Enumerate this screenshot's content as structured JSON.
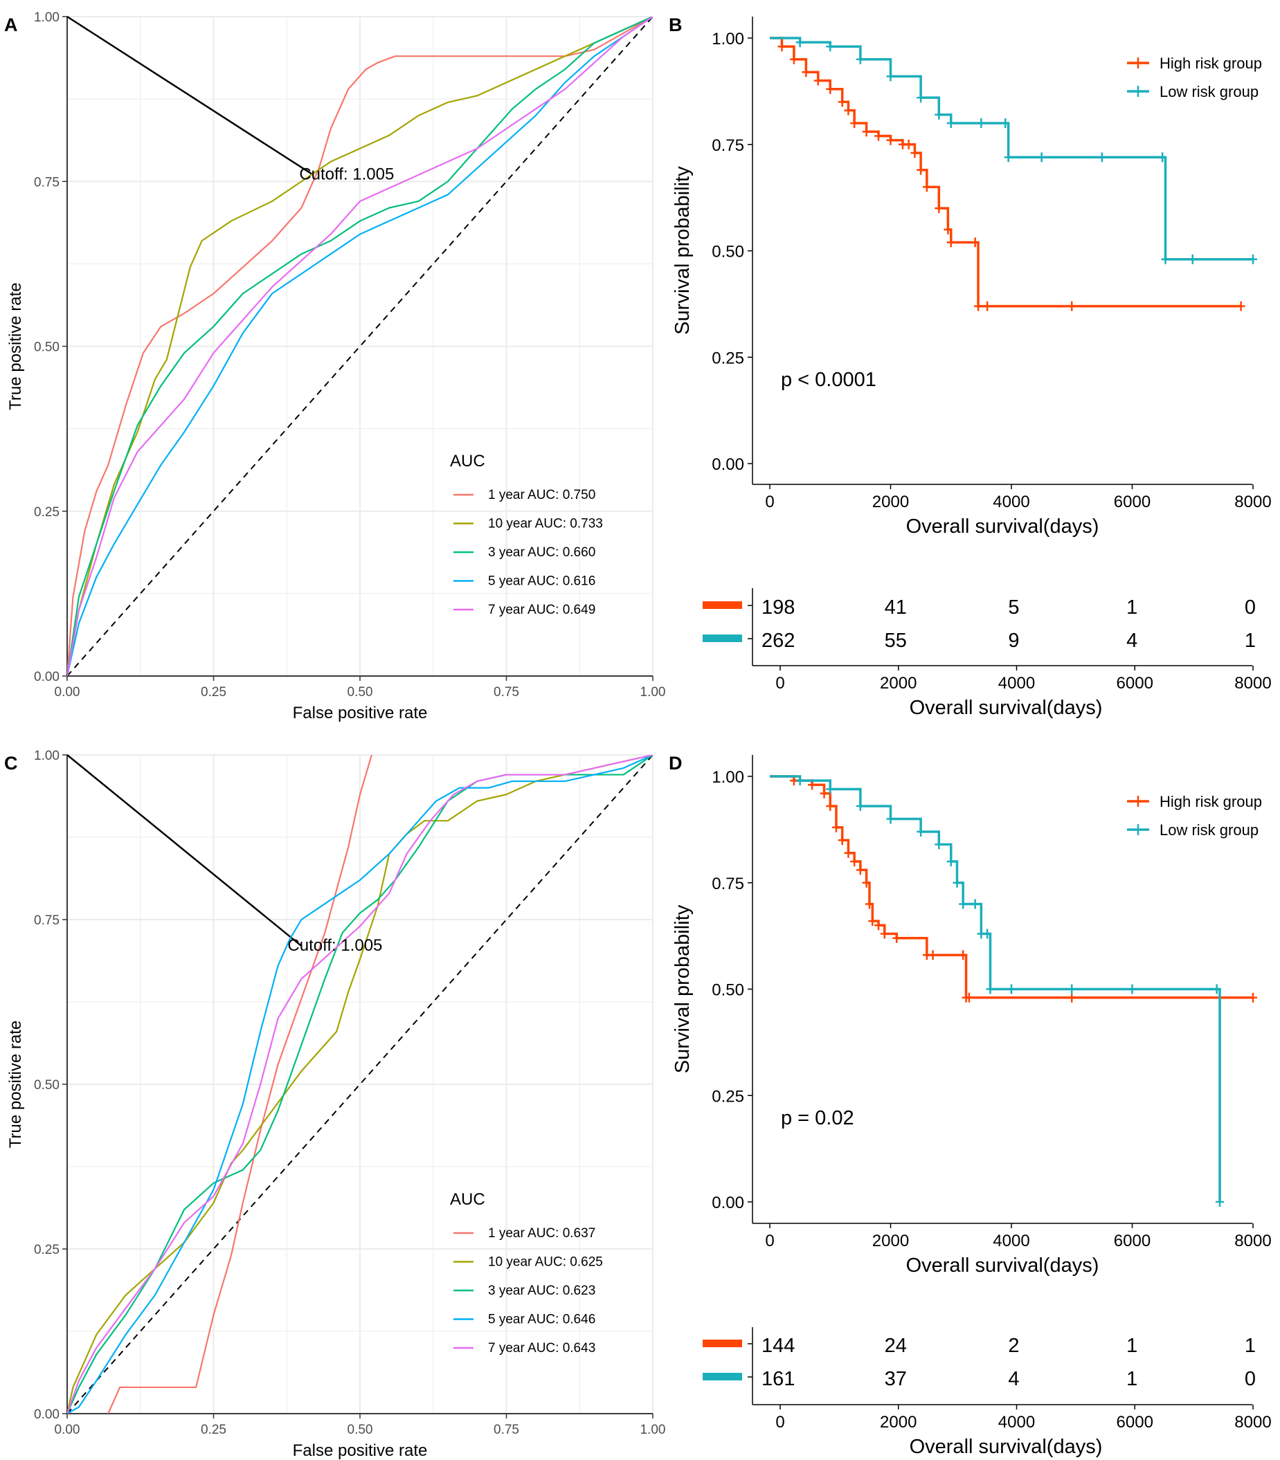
{
  "figure": "ROC and Kaplan-Meier survival analysis",
  "colors": {
    "y1": "#F8766D",
    "y10": "#A3A500",
    "y3": "#00BF7D",
    "y5": "#00B0F6",
    "y7": "#E76BF3",
    "high": "#FF4500",
    "low": "#1AAFBB",
    "grid": "#EBEBEB",
    "axis": "#000000"
  },
  "chart_data": [
    {
      "panel": "A",
      "type": "line",
      "xlabel": "False positive rate",
      "ylabel": "True positive rate",
      "xlim": [
        0,
        1
      ],
      "ylim": [
        0,
        1
      ],
      "xticks": [
        "0.00",
        "0.25",
        "0.50",
        "0.75",
        "1.00"
      ],
      "yticks": [
        "0.00",
        "0.25",
        "0.50",
        "0.75",
        "1.00"
      ],
      "grid": true,
      "legend_title": "AUC",
      "cutoff_label": "Cutoff: 1.005",
      "cutoff_point": [
        0.42,
        0.76
      ],
      "series": [
        {
          "name": "1 year AUC: 0.750",
          "color_key": "y1",
          "x": [
            0,
            0.01,
            0.03,
            0.05,
            0.07,
            0.1,
            0.13,
            0.16,
            0.2,
            0.25,
            0.3,
            0.35,
            0.4,
            0.43,
            0.45,
            0.48,
            0.51,
            0.53,
            0.56,
            0.6,
            0.7,
            0.8,
            0.85,
            0.9,
            1.0
          ],
          "y": [
            0,
            0.12,
            0.22,
            0.28,
            0.32,
            0.41,
            0.49,
            0.53,
            0.55,
            0.58,
            0.62,
            0.66,
            0.71,
            0.77,
            0.83,
            0.89,
            0.92,
            0.93,
            0.94,
            0.94,
            0.94,
            0.94,
            0.94,
            0.95,
            1.0
          ]
        },
        {
          "name": "10 year AUC: 0.733",
          "color_key": "y10",
          "x": [
            0,
            0.02,
            0.05,
            0.08,
            0.12,
            0.15,
            0.17,
            0.19,
            0.21,
            0.23,
            0.28,
            0.35,
            0.4,
            0.45,
            0.5,
            0.55,
            0.6,
            0.65,
            0.7,
            0.75,
            0.8,
            0.85,
            0.9,
            0.95,
            1.0
          ],
          "y": [
            0,
            0.1,
            0.2,
            0.29,
            0.37,
            0.45,
            0.48,
            0.55,
            0.62,
            0.66,
            0.69,
            0.72,
            0.75,
            0.78,
            0.8,
            0.82,
            0.85,
            0.87,
            0.88,
            0.9,
            0.92,
            0.94,
            0.96,
            0.98,
            1.0
          ]
        },
        {
          "name": "3 year AUC: 0.660",
          "color_key": "y3",
          "x": [
            0,
            0.02,
            0.05,
            0.08,
            0.12,
            0.16,
            0.2,
            0.25,
            0.3,
            0.35,
            0.4,
            0.45,
            0.5,
            0.55,
            0.6,
            0.65,
            0.68,
            0.72,
            0.76,
            0.8,
            0.85,
            0.9,
            0.95,
            1.0
          ],
          "y": [
            0,
            0.12,
            0.2,
            0.28,
            0.38,
            0.44,
            0.49,
            0.53,
            0.58,
            0.61,
            0.64,
            0.66,
            0.69,
            0.71,
            0.72,
            0.75,
            0.78,
            0.82,
            0.86,
            0.89,
            0.92,
            0.96,
            0.98,
            1.0
          ]
        },
        {
          "name": "5 year AUC: 0.616",
          "color_key": "y5",
          "x": [
            0,
            0.02,
            0.05,
            0.08,
            0.12,
            0.16,
            0.2,
            0.25,
            0.3,
            0.35,
            0.4,
            0.45,
            0.5,
            0.55,
            0.6,
            0.65,
            0.7,
            0.75,
            0.8,
            0.85,
            0.9,
            0.95,
            1.0
          ],
          "y": [
            0,
            0.08,
            0.15,
            0.2,
            0.26,
            0.32,
            0.37,
            0.44,
            0.52,
            0.58,
            0.61,
            0.64,
            0.67,
            0.69,
            0.71,
            0.73,
            0.77,
            0.81,
            0.85,
            0.9,
            0.94,
            0.97,
            1.0
          ]
        },
        {
          "name": "7 year AUC: 0.649",
          "color_key": "y7",
          "x": [
            0,
            0.02,
            0.05,
            0.08,
            0.12,
            0.16,
            0.2,
            0.25,
            0.3,
            0.35,
            0.4,
            0.45,
            0.5,
            0.55,
            0.6,
            0.65,
            0.7,
            0.75,
            0.8,
            0.85,
            0.9,
            0.95,
            1.0
          ],
          "y": [
            0,
            0.1,
            0.18,
            0.27,
            0.34,
            0.38,
            0.42,
            0.49,
            0.54,
            0.59,
            0.63,
            0.67,
            0.72,
            0.74,
            0.76,
            0.78,
            0.8,
            0.83,
            0.86,
            0.89,
            0.93,
            0.97,
            1.0
          ]
        }
      ]
    },
    {
      "panel": "B",
      "type": "line",
      "subtype": "kaplan-meier",
      "xlabel": "Overall survival(days)",
      "ylabel": "Survival probability",
      "xlim": [
        0,
        8000
      ],
      "ylim": [
        0,
        1
      ],
      "xticks": [
        "0",
        "2000",
        "4000",
        "6000",
        "8000"
      ],
      "yticks": [
        "0.00",
        "0.25",
        "0.50",
        "0.75",
        "1.00"
      ],
      "pvalue": "p < 0.0001",
      "series": [
        {
          "name": "High risk group",
          "color_key": "high",
          "x": [
            0,
            200,
            400,
            600,
            800,
            1000,
            1200,
            1300,
            1400,
            1600,
            1800,
            2000,
            2200,
            2300,
            2400,
            2500,
            2600,
            2800,
            2950,
            3000,
            3400,
            3450,
            3600,
            5000,
            7800
          ],
          "y": [
            1.0,
            0.98,
            0.95,
            0.92,
            0.9,
            0.88,
            0.85,
            0.83,
            0.8,
            0.78,
            0.77,
            0.76,
            0.75,
            0.75,
            0.73,
            0.69,
            0.65,
            0.6,
            0.55,
            0.52,
            0.52,
            0.37,
            0.37,
            0.37,
            0.37
          ]
        },
        {
          "name": "Low risk group",
          "color_key": "low",
          "x": [
            0,
            500,
            1000,
            1500,
            2000,
            2500,
            2800,
            3000,
            3500,
            3900,
            3950,
            4500,
            5500,
            6500,
            6550,
            7000,
            8000
          ],
          "y": [
            1.0,
            0.99,
            0.98,
            0.95,
            0.91,
            0.86,
            0.82,
            0.8,
            0.8,
            0.8,
            0.72,
            0.72,
            0.72,
            0.72,
            0.48,
            0.48,
            0.48
          ]
        }
      ],
      "risk_table": {
        "xlabel": "Overall survival(days)",
        "xticks": [
          "0",
          "2000",
          "4000",
          "6000",
          "8000"
        ],
        "rows": [
          {
            "color_key": "high",
            "values": [
              "198",
              "41",
              "5",
              "1",
              "0"
            ]
          },
          {
            "color_key": "low",
            "values": [
              "262",
              "55",
              "9",
              "4",
              "1"
            ]
          }
        ]
      }
    },
    {
      "panel": "C",
      "type": "line",
      "xlabel": "False positive rate",
      "ylabel": "True positive rate",
      "xlim": [
        0,
        1
      ],
      "ylim": [
        0,
        1
      ],
      "xticks": [
        "0.00",
        "0.25",
        "0.50",
        "0.75",
        "1.00"
      ],
      "yticks": [
        "0.00",
        "0.25",
        "0.50",
        "0.75",
        "1.00"
      ],
      "grid": true,
      "legend_title": "AUC",
      "cutoff_label": "Cutoff: 1.005",
      "cutoff_point": [
        0.4,
        0.71
      ],
      "series": [
        {
          "name": "1 year AUC: 0.637",
          "color_key": "y1",
          "x": [
            0.07,
            0.09,
            0.14,
            0.18,
            0.22,
            0.25,
            0.28,
            0.3,
            0.33,
            0.36,
            0.4,
            0.44,
            0.48,
            0.5,
            0.52
          ],
          "y": [
            0,
            0.04,
            0.04,
            0.04,
            0.04,
            0.15,
            0.24,
            0.32,
            0.43,
            0.53,
            0.63,
            0.73,
            0.86,
            0.94,
            1.0
          ]
        },
        {
          "name": "10 year AUC: 0.625",
          "color_key": "y10",
          "x": [
            0,
            0.01,
            0.02,
            0.05,
            0.1,
            0.15,
            0.2,
            0.25,
            0.28,
            0.3,
            0.35,
            0.4,
            0.44,
            0.46,
            0.48,
            0.5,
            0.53,
            0.55,
            0.58,
            0.61,
            0.65,
            0.7,
            0.75,
            0.8,
            0.85,
            0.9,
            1.0
          ],
          "y": [
            0,
            0.04,
            0.06,
            0.12,
            0.18,
            0.22,
            0.26,
            0.32,
            0.38,
            0.4,
            0.46,
            0.52,
            0.56,
            0.58,
            0.64,
            0.69,
            0.77,
            0.85,
            0.88,
            0.9,
            0.9,
            0.93,
            0.94,
            0.96,
            0.97,
            0.98,
            1.0
          ]
        },
        {
          "name": "3 year AUC: 0.623",
          "color_key": "y3",
          "x": [
            0,
            0.02,
            0.05,
            0.1,
            0.15,
            0.2,
            0.25,
            0.3,
            0.33,
            0.36,
            0.4,
            0.44,
            0.47,
            0.5,
            0.53,
            0.56,
            0.6,
            0.65,
            0.7,
            0.75,
            0.8,
            0.85,
            0.92,
            0.94,
            0.95,
            1.0
          ],
          "y": [
            0,
            0.04,
            0.09,
            0.15,
            0.22,
            0.31,
            0.35,
            0.37,
            0.4,
            0.46,
            0.56,
            0.66,
            0.73,
            0.76,
            0.78,
            0.81,
            0.86,
            0.93,
            0.96,
            0.97,
            0.97,
            0.97,
            0.97,
            0.97,
            0.97,
            1.0
          ]
        },
        {
          "name": "5 year AUC: 0.646",
          "color_key": "y5",
          "x": [
            0,
            0.02,
            0.05,
            0.1,
            0.15,
            0.2,
            0.25,
            0.3,
            0.33,
            0.36,
            0.38,
            0.4,
            0.45,
            0.5,
            0.55,
            0.6,
            0.63,
            0.67,
            0.72,
            0.76,
            0.8,
            0.85,
            0.9,
            0.95,
            1.0
          ],
          "y": [
            0,
            0.01,
            0.05,
            0.12,
            0.18,
            0.26,
            0.34,
            0.47,
            0.58,
            0.68,
            0.72,
            0.75,
            0.78,
            0.81,
            0.85,
            0.9,
            0.93,
            0.95,
            0.95,
            0.96,
            0.96,
            0.96,
            0.97,
            0.98,
            1.0
          ]
        },
        {
          "name": "7 year AUC: 0.643",
          "color_key": "y7",
          "x": [
            0,
            0.02,
            0.05,
            0.1,
            0.15,
            0.2,
            0.25,
            0.3,
            0.33,
            0.36,
            0.4,
            0.45,
            0.5,
            0.55,
            0.58,
            0.62,
            0.66,
            0.7,
            0.75,
            0.8,
            0.85,
            0.9,
            0.95,
            1.0
          ],
          "y": [
            0,
            0.05,
            0.1,
            0.16,
            0.22,
            0.29,
            0.33,
            0.41,
            0.5,
            0.6,
            0.66,
            0.7,
            0.74,
            0.79,
            0.85,
            0.9,
            0.94,
            0.96,
            0.97,
            0.97,
            0.97,
            0.98,
            0.99,
            1.0
          ]
        }
      ]
    },
    {
      "panel": "D",
      "type": "line",
      "subtype": "kaplan-meier",
      "xlabel": "Overall survival(days)",
      "ylabel": "Survival probability",
      "xlim": [
        0,
        8000
      ],
      "ylim": [
        0,
        1
      ],
      "xticks": [
        "0",
        "2000",
        "4000",
        "6000",
        "8000"
      ],
      "yticks": [
        "0.00",
        "0.25",
        "0.50",
        "0.75",
        "1.00"
      ],
      "pvalue": "p = 0.02",
      "series": [
        {
          "name": "High risk group",
          "color_key": "high",
          "x": [
            0,
            400,
            700,
            900,
            1000,
            1100,
            1200,
            1300,
            1400,
            1500,
            1600,
            1650,
            1700,
            1800,
            1900,
            2100,
            2600,
            2700,
            3200,
            3250,
            3300,
            5000,
            8000
          ],
          "y": [
            1.0,
            0.99,
            0.98,
            0.96,
            0.93,
            0.88,
            0.85,
            0.82,
            0.8,
            0.78,
            0.75,
            0.7,
            0.66,
            0.65,
            0.63,
            0.62,
            0.58,
            0.58,
            0.58,
            0.48,
            0.48,
            0.48,
            0.48
          ]
        },
        {
          "name": "Low risk group",
          "color_key": "low",
          "x": [
            0,
            500,
            1000,
            1500,
            2000,
            2500,
            2800,
            3000,
            3100,
            3200,
            3400,
            3500,
            3600,
            3650,
            4000,
            5000,
            6000,
            7400,
            7450
          ],
          "y": [
            1.0,
            0.99,
            0.97,
            0.93,
            0.9,
            0.87,
            0.84,
            0.8,
            0.75,
            0.7,
            0.7,
            0.63,
            0.63,
            0.5,
            0.5,
            0.5,
            0.5,
            0.5,
            0.0
          ]
        }
      ],
      "risk_table": {
        "xlabel": "Overall survival(days)",
        "xticks": [
          "0",
          "2000",
          "4000",
          "6000",
          "8000"
        ],
        "rows": [
          {
            "color_key": "high",
            "values": [
              "144",
              "24",
              "2",
              "1",
              "1"
            ]
          },
          {
            "color_key": "low",
            "values": [
              "161",
              "37",
              "4",
              "1",
              "0"
            ]
          }
        ]
      }
    }
  ]
}
